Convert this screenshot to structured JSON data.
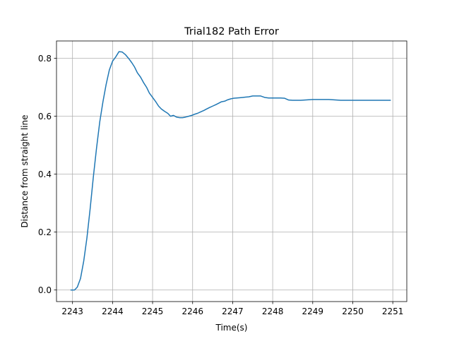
{
  "chart_data": {
    "type": "line",
    "title": "Trial182 Path Error",
    "xlabel": "Time(s)",
    "ylabel": "Distance from straight line",
    "xlim": [
      2242.6,
      2251.35
    ],
    "ylim": [
      -0.04,
      0.86
    ],
    "xticks": [
      2243,
      2244,
      2245,
      2246,
      2247,
      2248,
      2249,
      2250,
      2251
    ],
    "yticks": [
      0.0,
      0.2,
      0.4,
      0.6,
      0.8
    ],
    "ytick_labels": [
      "0.0",
      "0.2",
      "0.4",
      "0.6",
      "0.8"
    ],
    "grid": true,
    "line_color": "#1f77b4",
    "series": [
      {
        "x": [
          2242.95,
          2243.05,
          2243.12,
          2243.2,
          2243.28,
          2243.36,
          2243.44,
          2243.52,
          2243.6,
          2243.68,
          2243.76,
          2243.84,
          2243.92,
          2244.0,
          2244.08,
          2244.16,
          2244.24,
          2244.32,
          2244.4,
          2244.48,
          2244.55,
          2244.62,
          2244.7,
          2244.78,
          2244.85,
          2244.92,
          2245.0,
          2245.08,
          2245.15,
          2245.22,
          2245.3,
          2245.38,
          2245.45,
          2245.52,
          2245.6,
          2245.68,
          2245.75,
          2245.82,
          2245.9,
          2245.98,
          2246.05,
          2246.12,
          2246.2,
          2246.28,
          2246.35,
          2246.42,
          2246.5,
          2246.58,
          2246.65,
          2246.72,
          2246.8,
          2246.88,
          2246.95,
          2247.02,
          2247.1,
          2247.18,
          2247.25,
          2247.32,
          2247.4,
          2247.5,
          2247.6,
          2247.7,
          2247.8,
          2247.9,
          2248.0,
          2248.1,
          2248.2,
          2248.3,
          2248.4,
          2248.5,
          2248.6,
          2248.7,
          2248.8,
          2248.9,
          2249.0,
          2249.2,
          2249.4,
          2249.6,
          2249.7,
          2249.9,
          2250.2,
          2250.5,
          2250.8,
          2250.95
        ],
        "y": [
          0.0,
          0.0,
          0.01,
          0.04,
          0.1,
          0.18,
          0.28,
          0.39,
          0.49,
          0.58,
          0.65,
          0.71,
          0.76,
          0.79,
          0.805,
          0.823,
          0.822,
          0.813,
          0.8,
          0.785,
          0.77,
          0.75,
          0.735,
          0.715,
          0.7,
          0.68,
          0.665,
          0.65,
          0.635,
          0.625,
          0.617,
          0.61,
          0.6,
          0.603,
          0.597,
          0.595,
          0.595,
          0.597,
          0.6,
          0.603,
          0.607,
          0.61,
          0.615,
          0.62,
          0.625,
          0.63,
          0.635,
          0.64,
          0.645,
          0.65,
          0.652,
          0.657,
          0.66,
          0.662,
          0.663,
          0.664,
          0.665,
          0.666,
          0.667,
          0.67,
          0.67,
          0.67,
          0.665,
          0.663,
          0.663,
          0.663,
          0.663,
          0.662,
          0.656,
          0.655,
          0.655,
          0.655,
          0.656,
          0.657,
          0.658,
          0.658,
          0.658,
          0.656,
          0.655,
          0.655,
          0.655,
          0.655,
          0.655,
          0.655
        ]
      }
    ]
  }
}
